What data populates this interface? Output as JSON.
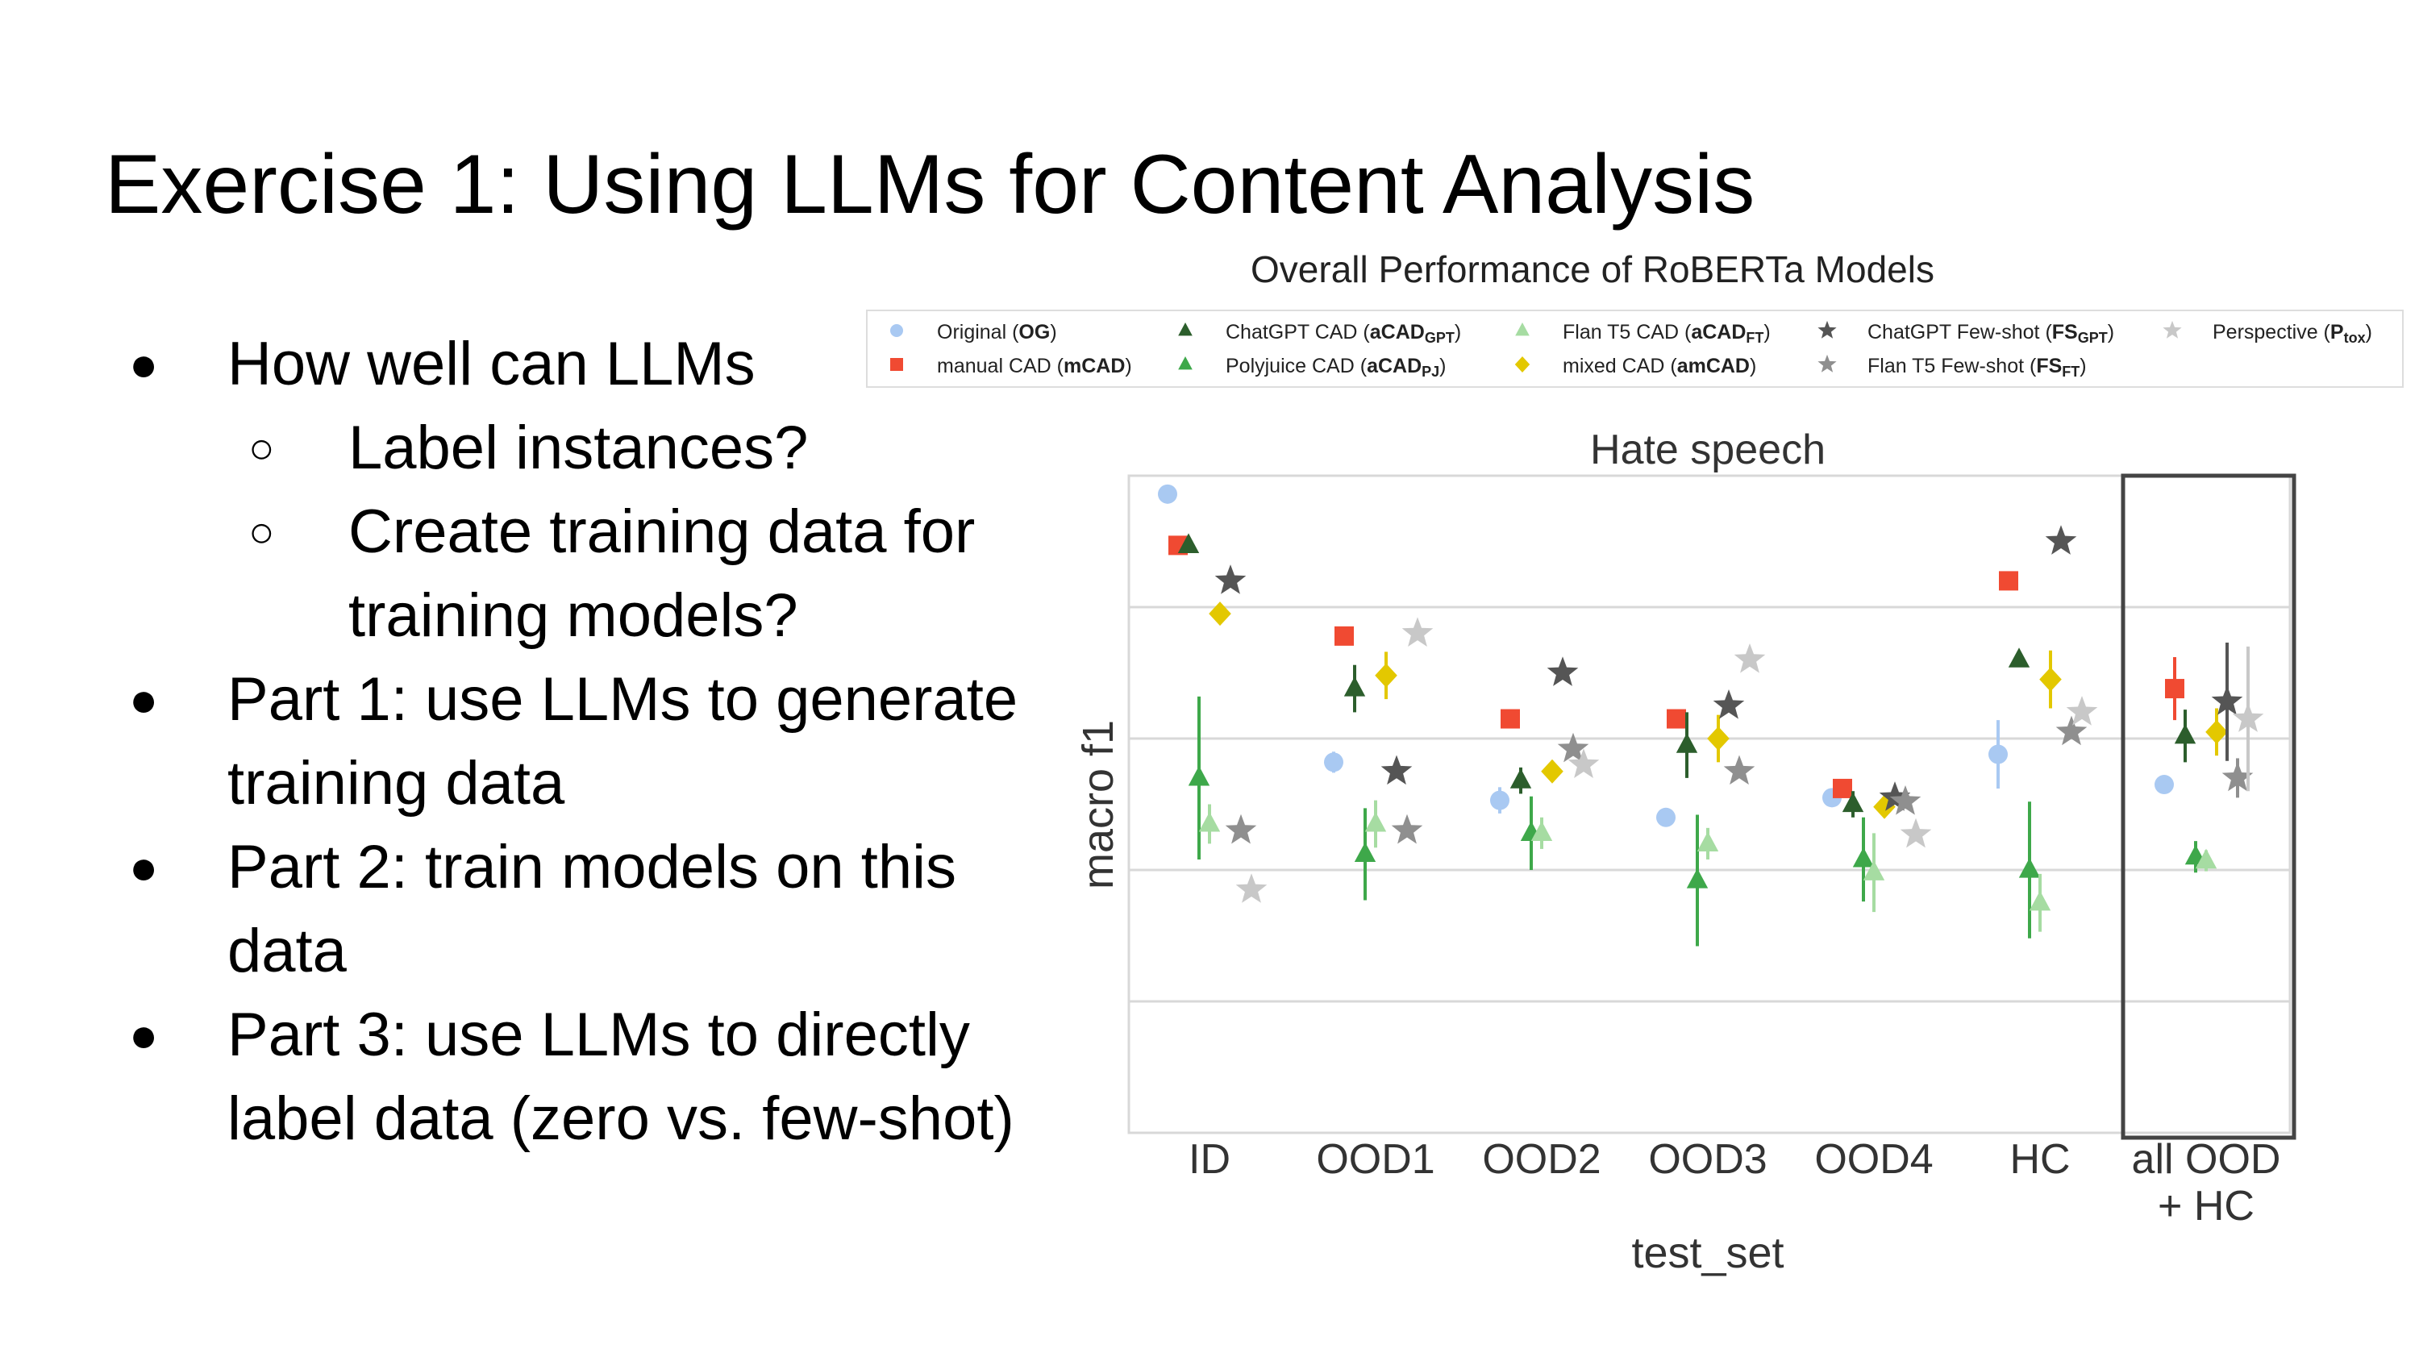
{
  "slide": {
    "title": "Exercise 1: Using LLMs for Content Analysis",
    "bullets": [
      {
        "level": 1,
        "marker": "●",
        "text": "How well can LLMs"
      },
      {
        "level": 2,
        "marker": "○",
        "text": "Label instances?"
      },
      {
        "level": 2,
        "marker": "○",
        "text": "Create training data for training models?"
      },
      {
        "level": 1,
        "marker": "●",
        "text": "Part 1: use LLMs to generate training data"
      },
      {
        "level": 1,
        "marker": "●",
        "text": "Part 2: train models on this data"
      },
      {
        "level": 1,
        "marker": "●",
        "text": "Part 3: use LLMs to directly label data (zero vs. few-shot)"
      }
    ]
  },
  "chart_data": {
    "type": "scatter",
    "suptitle": "Overall Performance of RoBERTa Models",
    "title": "Hate speech",
    "xlabel": "test_set",
    "ylabel": "macro f1",
    "grid": true,
    "legend_position": "top",
    "categories": [
      "ID",
      "OOD1",
      "OOD2",
      "OOD3",
      "OOD4",
      "HC",
      "all OOD\n+ HC"
    ],
    "highlighted_category": "all OOD\n+ HC",
    "ylim": [
      0,
      5
    ],
    "series": [
      {
        "name": "Original (OG)",
        "legend_parts": [
          [
            "Original (",
            ""
          ],
          [
            "OG",
            "b"
          ],
          [
            ")",
            ""
          ]
        ],
        "marker": "circle",
        "color": "#a9c9f2",
        "values": [
          4.86,
          2.82,
          2.53,
          2.4,
          2.55,
          2.88,
          2.65
        ],
        "err": [
          0,
          0.08,
          0.1,
          0,
          0.05,
          0.26,
          0.06
        ]
      },
      {
        "name": "manual CAD (mCAD)",
        "legend_parts": [
          [
            "manual CAD (",
            ""
          ],
          [
            "mCAD",
            "b"
          ],
          [
            ")",
            ""
          ]
        ],
        "marker": "square",
        "color": "#f04a32",
        "values": [
          4.47,
          3.78,
          3.15,
          3.15,
          2.62,
          4.2,
          3.38
        ],
        "err": [
          0,
          0,
          0,
          0,
          0,
          0,
          0.24
        ]
      },
      {
        "name": "ChatGPT CAD (aCADGPT)",
        "legend_parts": [
          [
            "ChatGPT CAD (",
            ""
          ],
          [
            "aCAD",
            "b"
          ],
          [
            "GPT",
            "bs"
          ],
          [
            ")",
            ""
          ]
        ],
        "marker": "triangle",
        "color": "#2c5e2c",
        "values": [
          4.47,
          3.38,
          2.68,
          2.95,
          2.5,
          3.6,
          3.02
        ],
        "err": [
          0,
          0.18,
          0.1,
          0.25,
          0.1,
          0,
          0.2
        ]
      },
      {
        "name": "Polyjuice CAD (aCADPJ)",
        "legend_parts": [
          [
            "Polyjuice CAD (",
            ""
          ],
          [
            "aCAD",
            "b"
          ],
          [
            "PJ",
            "bs"
          ],
          [
            ")",
            ""
          ]
        ],
        "marker": "triangle",
        "color": "#3ea84a",
        "values": [
          2.7,
          2.12,
          2.28,
          1.92,
          2.08,
          2.0,
          2.1
        ],
        "err": [
          0.62,
          0.35,
          0.28,
          0.5,
          0.32,
          0.52,
          0.12
        ]
      },
      {
        "name": "Flan T5 CAD (aCADFT)",
        "legend_parts": [
          [
            "Flan T5 CAD (",
            ""
          ],
          [
            "aCAD",
            "b"
          ],
          [
            "FT",
            "bs"
          ],
          [
            ")",
            ""
          ]
        ],
        "marker": "triangle",
        "color": "#a6dca2",
        "values": [
          2.35,
          2.35,
          2.28,
          2.2,
          1.98,
          1.75,
          2.07
        ],
        "err": [
          0.15,
          0.18,
          0.12,
          0.12,
          0.3,
          0.22,
          0.08
        ]
      },
      {
        "name": "mixed CAD (amCAD)",
        "legend_parts": [
          [
            "mixed CAD (",
            ""
          ],
          [
            "amCAD",
            "b"
          ],
          [
            ")",
            ""
          ]
        ],
        "marker": "diamond",
        "color": "#e3c800",
        "values": [
          3.95,
          3.48,
          2.75,
          3.0,
          2.48,
          3.45,
          3.05
        ],
        "err": [
          0,
          0.18,
          0.08,
          0.18,
          0.08,
          0.22,
          0.18
        ]
      },
      {
        "name": "ChatGPT Few-shot (FSGPT)",
        "legend_parts": [
          [
            "ChatGPT Few-shot (",
            ""
          ],
          [
            "FS",
            "b"
          ],
          [
            "GPT",
            "bs"
          ],
          [
            ")",
            ""
          ]
        ],
        "marker": "star",
        "color": "#555555",
        "values": [
          4.2,
          2.75,
          3.5,
          3.25,
          2.55,
          4.5,
          3.28
        ],
        "err": [
          0,
          0,
          0,
          0,
          0,
          0,
          0.45
        ]
      },
      {
        "name": "Flan T5 Few-shot (FSFT)",
        "legend_parts": [
          [
            "Flan T5 Few-shot (",
            ""
          ],
          [
            "FS",
            "b"
          ],
          [
            "FT",
            "bs"
          ],
          [
            ")",
            ""
          ]
        ],
        "marker": "star",
        "color": "#8f8f8f",
        "values": [
          2.3,
          2.3,
          2.92,
          2.75,
          2.52,
          3.05,
          2.7
        ],
        "err": [
          0,
          0,
          0,
          0,
          0,
          0,
          0.15
        ]
      },
      {
        "name": "Perspective (Ptox)",
        "legend_parts": [
          [
            "Perspective (",
            ""
          ],
          [
            "P",
            "b"
          ],
          [
            "tox",
            "bs"
          ],
          [
            ")",
            ""
          ]
        ],
        "marker": "star",
        "color": "#c8c8c8",
        "values": [
          1.85,
          3.8,
          2.8,
          3.6,
          2.27,
          3.2,
          3.15
        ],
        "err": [
          0,
          0,
          0,
          0,
          0,
          0,
          0.55
        ]
      }
    ],
    "legend_order": [
      0,
      2,
      4,
      6,
      8,
      1,
      3,
      5,
      7
    ]
  }
}
